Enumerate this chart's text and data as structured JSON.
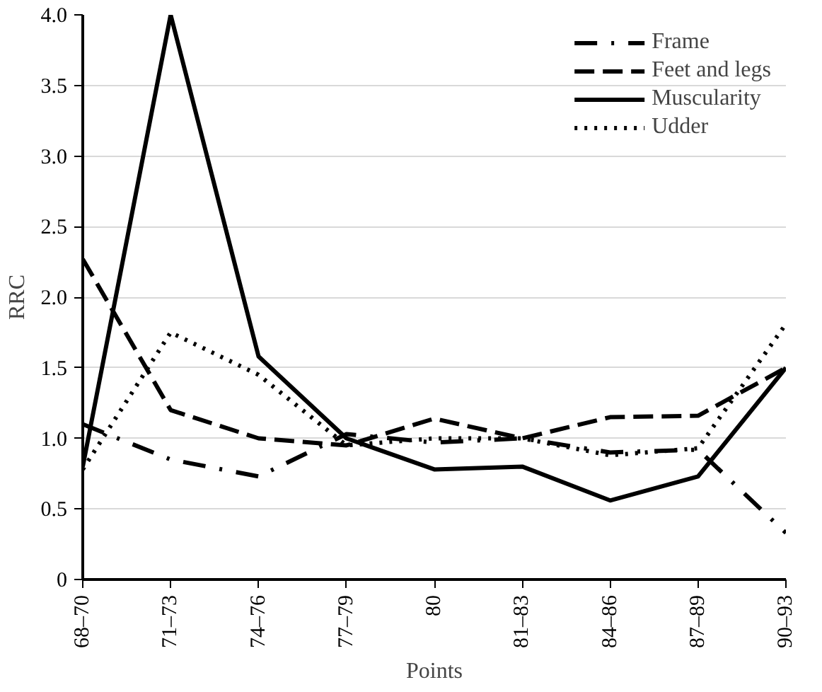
{
  "chart_data": {
    "type": "line",
    "xlabel": "Points",
    "ylabel": "RRC",
    "categories": [
      "68–70",
      "71–73",
      "74–76",
      "77–79",
      "80",
      "81–83",
      "84–86",
      "87–89",
      "90–93"
    ],
    "ylim": [
      0,
      4.0
    ],
    "yticks": [
      0,
      {
        "value": 0.5,
        "label": "0.5"
      },
      {
        "value": 1,
        "label": "1.0"
      },
      {
        "value": 1.5,
        "label": "1.5"
      },
      {
        "value": 2,
        "label": "2.0"
      },
      {
        "value": 2.5,
        "label": "2.5"
      },
      {
        "value": 3,
        "label": "3.0"
      },
      {
        "value": 3.5,
        "label": "3.5"
      },
      {
        "value": 4,
        "label": "4.0"
      }
    ],
    "grid": "y",
    "legend": "top right",
    "series": [
      {
        "name": "Frame",
        "color": "#000000",
        "line_style": "dashdot",
        "values": [
          1.1,
          0.85,
          0.73,
          1.03,
          0.97,
          1.0,
          0.9,
          0.92,
          0.33
        ]
      },
      {
        "name": "Feet and legs",
        "color": "#000000",
        "line_style": "dashed",
        "values": [
          2.27,
          1.2,
          1.0,
          0.95,
          1.14,
          1.0,
          1.15,
          1.16,
          1.5
        ]
      },
      {
        "name": "Muscularity",
        "color": "#000000",
        "line_style": "solid",
        "values": [
          0.8,
          4.0,
          1.58,
          1.0,
          0.78,
          0.8,
          0.56,
          0.73,
          1.5
        ]
      },
      {
        "name": "Udder",
        "color": "#000000",
        "line_style": "dotted",
        "values": [
          0.78,
          1.75,
          1.45,
          0.95,
          1.0,
          1.0,
          0.88,
          0.93,
          1.81
        ]
      }
    ]
  }
}
